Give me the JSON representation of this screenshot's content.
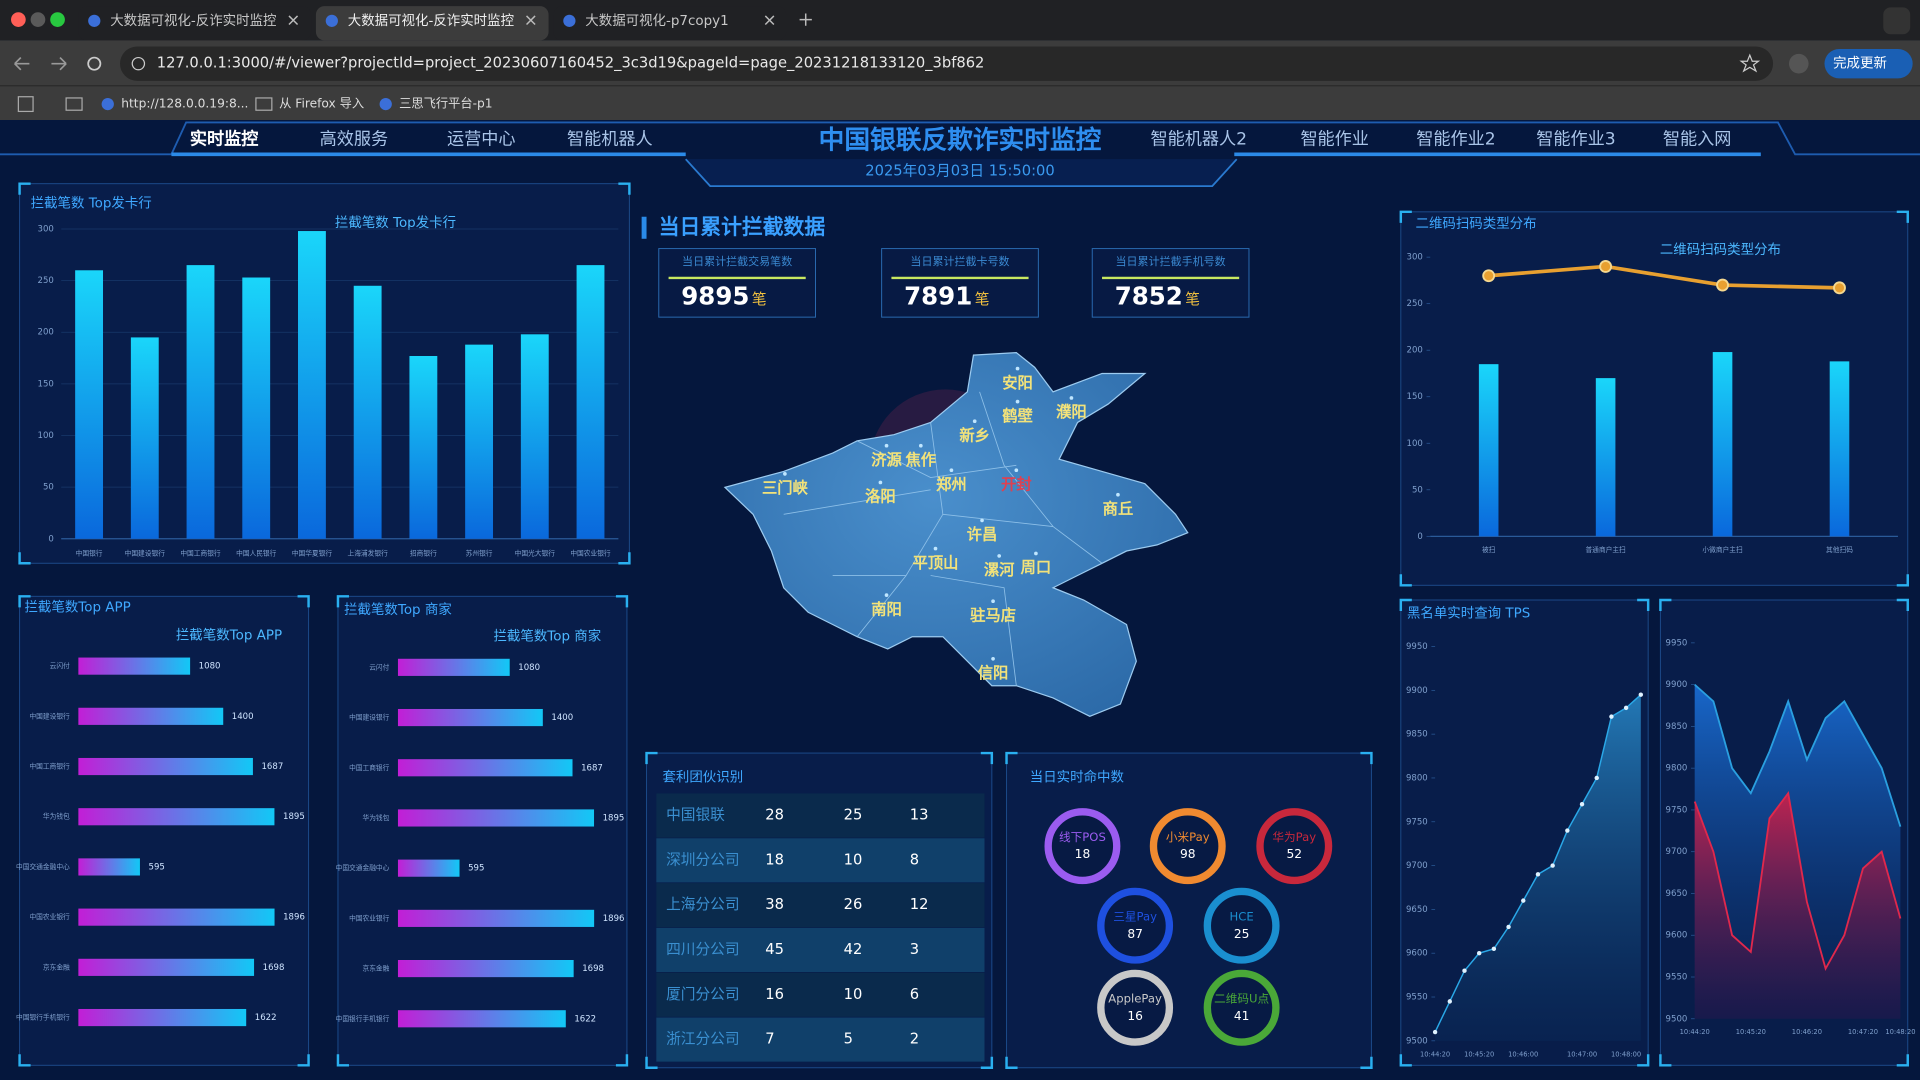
{
  "browser": {
    "tabs": [
      "大数据可视化-反诈实时监控",
      "大数据可视化-反诈实时监控",
      "大数据可视化-p7copy1"
    ],
    "url": "127.0.0.1:3000/#/viewer?projectId=project_20230607160452_3c3d19&pageId=page_20231218133120_3bf862",
    "update_button": "完成更新",
    "bookmarks": [
      "http://128.0.0.19:8...",
      "从 Firefox 导入",
      "三思飞行平台-p1"
    ]
  },
  "header": {
    "title": "中国银联反欺诈实时监控",
    "datetime": "2025年03月03日 15:50:00",
    "nav_left": [
      "实时监控",
      "高效服务",
      "运营中心",
      "智能机器人"
    ],
    "nav_right": [
      "智能机器人2",
      "智能作业",
      "智能作业2",
      "智能作业3",
      "智能入网"
    ]
  },
  "summary": {
    "title": "当日累计拦截数据",
    "stats": [
      {
        "label": "当日累计拦截交易笔数",
        "value": 9895,
        "unit": "笔"
      },
      {
        "label": "当日累计拦截卡号数",
        "value": 7891,
        "unit": "笔"
      },
      {
        "label": "当日累计拦截手机号数",
        "value": 7852,
        "unit": "笔"
      }
    ]
  },
  "map": {
    "cities": [
      "安阳",
      "鹤壁",
      "濮阳",
      "新乡",
      "济源",
      "焦作",
      "三门峡",
      "郑州",
      "开封",
      "洛阳",
      "商丘",
      "许昌",
      "平顶山",
      "漯河",
      "周口",
      "南阳",
      "驻马店",
      "信阳"
    ]
  },
  "table": {
    "title": "套利团伙识别",
    "rows": [
      [
        "中国银联",
        28,
        25,
        13
      ],
      [
        "深圳分公司",
        18,
        10,
        8
      ],
      [
        "上海分公司",
        38,
        26,
        12
      ],
      [
        "四川分公司",
        45,
        42,
        3
      ],
      [
        "厦门分公司",
        16,
        10,
        6
      ],
      [
        "浙江分公司",
        7,
        5,
        2
      ]
    ]
  },
  "gauges": {
    "title": "当日实时命中数",
    "items": [
      {
        "label": "线下POS",
        "value": 18,
        "color": "#9b5cf0"
      },
      {
        "label": "小米Pay",
        "value": 98,
        "color": "#f08a30"
      },
      {
        "label": "华为Pay",
        "value": 52,
        "color": "#c8283c"
      },
      {
        "label": "三星Pay",
        "value": 87,
        "color": "#1e50e0"
      },
      {
        "label": "HCE",
        "value": 25,
        "color": "#1a8fd0"
      },
      {
        "label": "ApplePay",
        "value": 16,
        "color": "#c8c8c8"
      },
      {
        "label": "二维码U点",
        "value": 41,
        "color": "#4aa838"
      }
    ]
  },
  "chart_data": [
    {
      "type": "bar",
      "panel_title": "拦截笔数 Top发卡行",
      "title": "拦截笔数 Top发卡行",
      "categories": [
        "中国银行",
        "中国建设银行",
        "中国工商银行",
        "中国人民银行",
        "中国华夏银行",
        "上海浦发银行",
        "招商银行",
        "苏州银行",
        "中国光大银行",
        "中国农业银行"
      ],
      "values": [
        260,
        195,
        265,
        253,
        298,
        245,
        177,
        188,
        198,
        265
      ],
      "color": "#12b8f4",
      "ylim": [
        0,
        300
      ],
      "yticks": [
        0,
        50,
        100,
        150,
        200,
        250,
        300
      ],
      "grid": true
    },
    {
      "type": "hbar",
      "panel_title": "拦截笔数Top APP",
      "title": "拦截笔数Top APP",
      "categories": [
        "云闪付",
        "中国建设银行",
        "中国工商银行",
        "华为钱包",
        "中国交通金融中心",
        "中国农业银行",
        "京东金融",
        "中国银行手机银行"
      ],
      "values": [
        1080,
        1400,
        1687,
        1895,
        595,
        1896,
        1698,
        1622
      ],
      "xlim": [
        0,
        2000
      ]
    },
    {
      "type": "hbar",
      "panel_title": "拦截笔数Top 商家",
      "title": "拦截笔数Top 商家",
      "categories": [
        "云闪付",
        "中国建设银行",
        "中国工商银行",
        "华为钱包",
        "中国交通金融中心",
        "中国农业银行",
        "京东金融",
        "中国银行手机银行"
      ],
      "values": [
        1080,
        1400,
        1687,
        1895,
        595,
        1896,
        1698,
        1622
      ],
      "xlim": [
        0,
        2000
      ]
    },
    {
      "type": "bar_line",
      "panel_title": "二维码扫码类型分布",
      "title": "二维码扫码类型分布",
      "categories": [
        "被扫",
        "普通商户主扫",
        "小微商户主扫",
        "其他扫码"
      ],
      "series": [
        {
          "type": "bar",
          "color": "#12b8f4",
          "values": [
            185,
            170,
            198,
            188
          ]
        },
        {
          "type": "line",
          "color": "#e8a030",
          "values": [
            280,
            290,
            270,
            267
          ]
        }
      ],
      "ylim": [
        0,
        300
      ],
      "yticks": [
        0,
        50,
        100,
        150,
        200,
        250,
        300
      ],
      "grid": false
    },
    {
      "type": "line_area",
      "panel_title": "黑名单实时查询 TPS",
      "categories": [
        "10:44:20",
        null,
        null,
        "10:45:20",
        null,
        null,
        "10:46:00",
        null,
        null,
        null,
        "10:47:00",
        null,
        null,
        "10:48:00",
        null
      ],
      "values": [
        9510,
        9545,
        9580,
        9600,
        9605,
        9630,
        9660,
        9690,
        9700,
        9740,
        9770,
        9800,
        9870,
        9880,
        9895
      ],
      "color": "#2aa8e8",
      "ylim": [
        9500,
        9950
      ],
      "yticks": [
        9500,
        9550,
        9600,
        9650,
        9700,
        9750,
        9800,
        9850,
        9900,
        9950
      ]
    },
    {
      "type": "area",
      "categories": [
        "10:44:20",
        null,
        null,
        "10:45:20",
        null,
        null,
        "10:46:20",
        null,
        null,
        "10:47:20",
        null,
        "10:48:20"
      ],
      "series": [
        {
          "color": "#2a9fe0",
          "values": [
            9900,
            9880,
            9800,
            9770,
            9820,
            9880,
            9810,
            9860,
            9880,
            9840,
            9800,
            9730
          ]
        },
        {
          "color": "#e0284c",
          "values": [
            9760,
            9700,
            9600,
            9580,
            9740,
            9770,
            9640,
            9560,
            9600,
            9680,
            9700,
            9620
          ]
        }
      ],
      "ylim": [
        9500,
        9950
      ],
      "yticks": [
        9500,
        9550,
        9600,
        9650,
        9700,
        9750,
        9800,
        9850,
        9900,
        9950
      ]
    }
  ]
}
